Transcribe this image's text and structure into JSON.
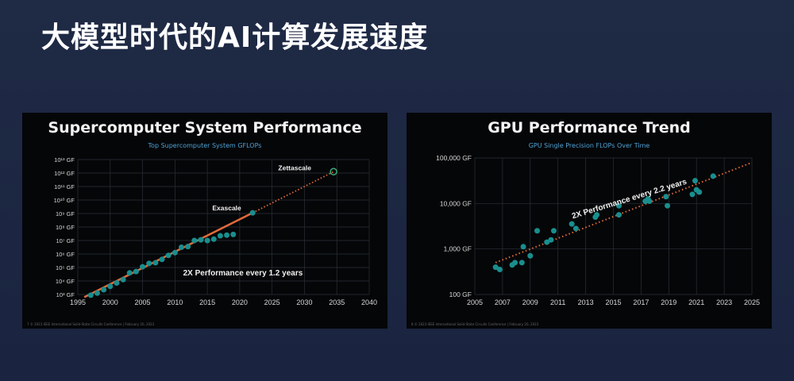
{
  "page": {
    "title": "大模型时代的AI计算发展速度"
  },
  "panels": {
    "left": {
      "footer": "7    © 2023 IEEE International Solid-State Circuits Conference  |  February 20, 2023"
    },
    "right": {
      "footer": "8    © 2023 IEEE International Solid-State Circuits Conference  |  February 20, 2023"
    }
  },
  "colors": {
    "point": "#1a8e8e",
    "fit_line": "#e06a3a",
    "trend": "#e06a3a",
    "grid": "#2b3038"
  },
  "chart_data": [
    {
      "type": "scatter",
      "title": "Supercomputer System Performance",
      "subtitle": "Top Supercomputer System GFLOPs",
      "xlabel": "",
      "ylabel": "",
      "xlim": [
        1995,
        2040
      ],
      "ylim_log10": [
        3,
        13
      ],
      "y_scale": "log",
      "x_ticks": [
        1995,
        2000,
        2005,
        2010,
        2015,
        2020,
        2025,
        2030,
        2035,
        2040
      ],
      "y_ticks": [
        "10³ GF",
        "10⁴ GF",
        "10⁵ GF",
        "10⁶ GF",
        "10⁷ GF",
        "10⁸ GF",
        "10⁹ GF",
        "10¹⁰ GF",
        "10¹¹ GF",
        "10¹² GF",
        "10¹³ GF"
      ],
      "grid": true,
      "series": [
        {
          "points": [
            [
              1997,
              2.95
            ],
            [
              1998,
              3.1
            ],
            [
              1999,
              3.35
            ],
            [
              2000,
              3.6
            ],
            [
              2001,
              3.85
            ],
            [
              2002,
              4.1
            ],
            [
              2003,
              4.6
            ],
            [
              2004,
              4.7
            ],
            [
              2005,
              5.05
            ],
            [
              2006,
              5.3
            ],
            [
              2007,
              5.35
            ],
            [
              2008,
              5.6
            ],
            [
              2009,
              5.9
            ],
            [
              2010,
              6.1
            ],
            [
              2011,
              6.5
            ],
            [
              2012,
              6.55
            ],
            [
              2013,
              7.0
            ],
            [
              2014,
              7.05
            ],
            [
              2015,
              7.0
            ],
            [
              2016,
              7.1
            ],
            [
              2017,
              7.35
            ],
            [
              2018,
              7.4
            ],
            [
              2019,
              7.45
            ],
            [
              2022,
              9.05
            ]
          ]
        }
      ],
      "fit_line": {
        "from": [
          1996,
          2.8
        ],
        "to": [
          2022,
          9.05
        ]
      },
      "projection": {
        "from": [
          2022,
          9.05
        ],
        "to": [
          2034.5,
          12.1
        ]
      },
      "milestone": {
        "x": 2034.5,
        "y": 12.1
      },
      "annotations": [
        {
          "text": "Exascale",
          "x": 2018,
          "y": 9.25
        },
        {
          "text": "Zettascale",
          "x": 2028.5,
          "y": 12.2
        },
        {
          "text": "2X Performance every 1.2 years",
          "x": 2020.5,
          "y": 4.4
        }
      ]
    },
    {
      "type": "scatter",
      "title": "GPU Performance Trend",
      "subtitle": "GPU Single Precision FLOPs Over Time",
      "xlabel": "",
      "ylabel": "",
      "xlim": [
        2005,
        2025
      ],
      "ylim_log10": [
        2,
        5
      ],
      "y_scale": "log",
      "x_ticks": [
        2005,
        2007,
        2009,
        2011,
        2013,
        2015,
        2017,
        2019,
        2021,
        2023,
        2025
      ],
      "y_ticks": [
        "100 GF",
        "1,000 GF",
        "10,000 GF",
        "100,000 GF"
      ],
      "grid": true,
      "series": [
        {
          "points": [
            [
              2006.5,
              2.6
            ],
            [
              2006.8,
              2.55
            ],
            [
              2007.7,
              2.65
            ],
            [
              2007.9,
              2.7
            ],
            [
              2008.4,
              2.7
            ],
            [
              2008.5,
              3.05
            ],
            [
              2009.0,
              2.85
            ],
            [
              2009.5,
              3.4
            ],
            [
              2010.2,
              3.15
            ],
            [
              2010.5,
              3.2
            ],
            [
              2010.7,
              3.4
            ],
            [
              2012.0,
              3.55
            ],
            [
              2012.3,
              3.45
            ],
            [
              2013.7,
              3.7
            ],
            [
              2013.8,
              3.75
            ],
            [
              2015.4,
              3.75
            ],
            [
              2015.4,
              3.95
            ],
            [
              2017.3,
              4.05
            ],
            [
              2017.5,
              4.1
            ],
            [
              2017.6,
              4.05
            ],
            [
              2018.8,
              4.15
            ],
            [
              2018.9,
              3.95
            ],
            [
              2020.7,
              4.2
            ],
            [
              2020.9,
              4.5
            ],
            [
              2021.0,
              4.3
            ],
            [
              2021.2,
              4.25
            ],
            [
              2022.2,
              4.6
            ]
          ]
        }
      ],
      "trend": {
        "from": [
          2006.5,
          2.7
        ],
        "to": [
          2025,
          4.9
        ]
      },
      "annotations": [
        {
          "text": "2X Performance every 2.2 years",
          "x": 2016.2,
          "y": 4.05
        }
      ]
    }
  ]
}
